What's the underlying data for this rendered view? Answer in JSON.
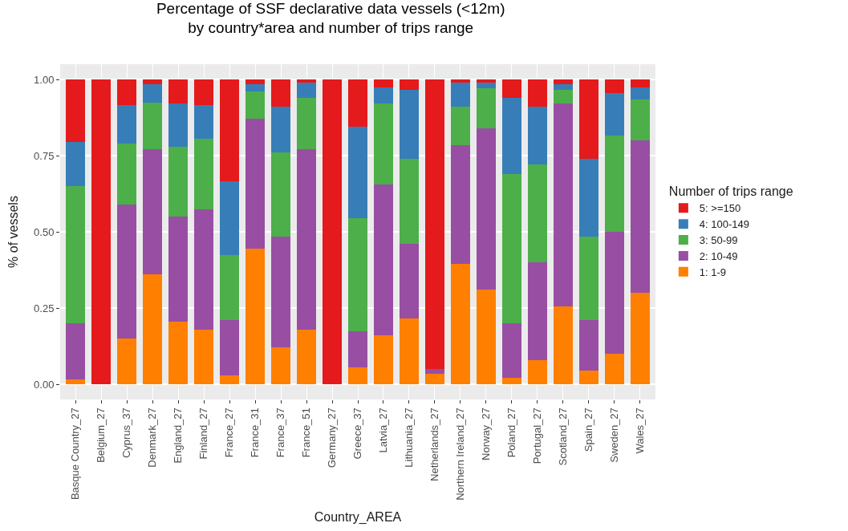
{
  "chart_data": {
    "type": "bar",
    "stacked": true,
    "title": "Percentage of SSF declarative data vessels (<12m)\nby country*area and number of trips range",
    "xlabel": "Country_AREA",
    "ylabel": "% of vessels",
    "legend_title": "Number of trips range",
    "legend": "right",
    "grid": true,
    "categories": [
      "Basque Country_27",
      "Belgium_27",
      "Cyprus_37",
      "Denmark_27",
      "England_27",
      "Finland_27",
      "France_27",
      "France_31",
      "France_37",
      "France_51",
      "Germany_27",
      "Greece_37",
      "Latvia_27",
      "Lithuania_27",
      "Netherlands_27",
      "Northern Ireland_27",
      "Norway_27",
      "Poland_27",
      "Portugal_27",
      "Scotland_27",
      "Spain_27",
      "Sweden_27",
      "Wales_27"
    ],
    "ylim": [
      -0.05,
      1.05
    ],
    "yticks": [
      {
        "value": 0,
        "label": "0.00"
      },
      {
        "value": 0.25,
        "label": "0.25"
      },
      {
        "value": 0.5,
        "label": "0.50"
      },
      {
        "value": 0.75,
        "label": "0.75"
      },
      {
        "value": 1,
        "label": "1.00"
      }
    ],
    "series": [
      {
        "name": "1: 1-9",
        "color": "#ff7f00",
        "values": [
          0.015,
          0,
          0.15,
          0.36,
          0.205,
          0.18,
          0.03,
          0.445,
          0.12,
          0.18,
          0,
          0.055,
          0.16,
          0.215,
          0.035,
          0.395,
          0.31,
          0.02,
          0.08,
          0.255,
          0.045,
          0.1,
          0.3
        ]
      },
      {
        "name": "2: 10-49",
        "color": "#984ea3",
        "values": [
          0.185,
          0,
          0.44,
          0.41,
          0.345,
          0.395,
          0.18,
          0.425,
          0.365,
          0.59,
          0,
          0.12,
          0.495,
          0.245,
          0.015,
          0.39,
          0.53,
          0.18,
          0.32,
          0.665,
          0.165,
          0.4,
          0.5
        ]
      },
      {
        "name": "3: 50-99",
        "color": "#4daf4a",
        "values": [
          0.45,
          0,
          0.2,
          0.155,
          0.23,
          0.23,
          0.215,
          0.09,
          0.275,
          0.17,
          0,
          0.37,
          0.265,
          0.28,
          0,
          0.125,
          0.13,
          0.49,
          0.32,
          0.045,
          0.275,
          0.315,
          0.135
        ]
      },
      {
        "name": "4: 100-149",
        "color": "#377eb8",
        "values": [
          0.145,
          0,
          0.125,
          0.06,
          0.14,
          0.11,
          0.24,
          0.025,
          0.15,
          0.05,
          0,
          0.3,
          0.055,
          0.225,
          0,
          0.08,
          0.02,
          0.25,
          0.19,
          0.02,
          0.255,
          0.14,
          0.04
        ]
      },
      {
        "name": "5: >=150",
        "color": "#e41a1c",
        "values": [
          0.205,
          1,
          0.085,
          0.015,
          0.08,
          0.085,
          0.335,
          0.015,
          0.09,
          0.01,
          1,
          0.155,
          0.025,
          0.035,
          0.95,
          0.01,
          0.01,
          0.06,
          0.09,
          0.015,
          0.26,
          0.045,
          0.025
        ]
      }
    ]
  }
}
